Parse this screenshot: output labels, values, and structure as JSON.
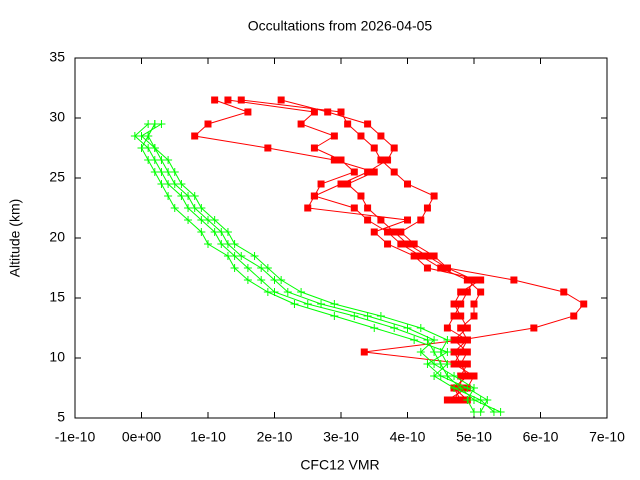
{
  "chart_data": {
    "type": "line",
    "title": "Occultations from 2026-04-05",
    "x_label": "CFC12 VMR",
    "y_label": "Altitude (km)",
    "xlim": [
      -1e-10,
      7e-10
    ],
    "xticks": [
      -1e-10,
      {
        "value": 0,
        "label": "0e+00"
      },
      1e-10,
      2e-10,
      3e-10,
      4e-10,
      5e-10,
      6e-10,
      7e-10
    ],
    "ylim": [
      5,
      35
    ],
    "yticks": [
      5,
      10,
      15,
      20,
      25,
      30,
      35
    ],
    "series": [
      {
        "color": "#ff0000",
        "marker": "square",
        "x": [
          4.7e-10,
          4.8e-10,
          4.8e-10,
          4.9e-10,
          3.35e-10,
          4.8e-10,
          5.9e-10,
          6.5e-10,
          6.65e-10,
          6.35e-10,
          5.6e-10,
          4.6e-10,
          4.3e-10,
          4e-10,
          3.8e-10,
          3.6e-10,
          3.4e-10,
          3.3e-10,
          3.1e-10,
          3.5e-10,
          2.9e-10,
          1.9e-10,
          8e-11,
          1e-10,
          1.6e-10,
          1.1e-10
        ],
        "values": [
          6.5,
          7.5,
          8.5,
          9.5,
          10.5,
          11.5,
          12.5,
          13.5,
          14.5,
          15.5,
          16.5,
          17.5,
          18.5,
          19.5,
          20.5,
          21.5,
          22.5,
          23.5,
          24.5,
          25.5,
          26.5,
          27.5,
          28.5,
          29.5,
          30.5,
          31.5
        ]
      },
      {
        "color": "#ff0000",
        "marker": "square",
        "x": [
          4.9e-10,
          4.7e-10,
          4.9e-10,
          4.8e-10,
          4.7e-10,
          4.9e-10,
          4.8e-10,
          5e-10,
          5e-10,
          5.1e-10,
          4.9e-10,
          4.5e-10,
          4.2e-10,
          3.9e-10,
          3.7e-10,
          3.4e-10,
          3.2e-10,
          2.6e-10,
          2.7e-10,
          3.2e-10,
          3e-10,
          2.6e-10,
          2.9e-10,
          2.4e-10,
          2.6e-10,
          1.3e-10
        ],
        "values": [
          6.5,
          7.5,
          8.5,
          9.5,
          10.5,
          11.5,
          12.5,
          13.5,
          14.5,
          15.5,
          16.5,
          17.5,
          18.5,
          19.5,
          20.5,
          21.5,
          22.5,
          23.5,
          24.5,
          25.5,
          26.5,
          27.5,
          28.5,
          29.5,
          30.5,
          31.5
        ]
      },
      {
        "color": "#ff0000",
        "marker": "square",
        "x": [
          4.6e-10,
          4.9e-10,
          5e-10,
          4.7e-10,
          4.8e-10,
          4.9e-10,
          4.6e-10,
          4.7e-10,
          4.8e-10,
          4.9e-10,
          5e-10,
          4.6e-10,
          4.4e-10,
          4.1e-10,
          3.9e-10,
          4.2e-10,
          4.3e-10,
          4.4e-10,
          4e-10,
          3.8e-10,
          3.6e-10,
          3.5e-10,
          3.3e-10,
          3.1e-10,
          3e-10,
          1.5e-10
        ],
        "values": [
          6.5,
          7.5,
          8.5,
          9.5,
          10.5,
          11.5,
          12.5,
          13.5,
          14.5,
          15.5,
          16.5,
          17.5,
          18.5,
          19.5,
          20.5,
          21.5,
          22.5,
          23.5,
          24.5,
          25.5,
          26.5,
          27.5,
          28.5,
          29.5,
          30.5,
          31.5
        ]
      },
      {
        "color": "#ff0000",
        "marker": "square",
        "x": [
          4.8e-10,
          4.7e-10,
          4.9e-10,
          4.8e-10,
          4.9e-10,
          4.7e-10,
          4.9e-10,
          4.8e-10,
          4.7e-10,
          4.8e-10,
          5.1e-10,
          4.3e-10,
          4.1e-10,
          3.7e-10,
          3.5e-10,
          4e-10,
          2.5e-10,
          2.6e-10,
          3e-10,
          3.4e-10,
          3.7e-10,
          3.8e-10,
          3.6e-10,
          3.4e-10,
          2.8e-10,
          2.1e-10
        ],
        "values": [
          6.5,
          7.5,
          8.5,
          9.5,
          10.5,
          11.5,
          12.5,
          13.5,
          14.5,
          15.5,
          16.5,
          17.5,
          18.5,
          19.5,
          20.5,
          21.5,
          22.5,
          23.5,
          24.5,
          25.5,
          26.5,
          27.5,
          28.5,
          29.5,
          30.5,
          31.5
        ]
      },
      {
        "color": "#00ff00",
        "marker": "plus",
        "x": [
          5.4e-10,
          5e-10,
          4.8e-10,
          4.6e-10,
          4.5e-10,
          4.4e-10,
          4.3e-10,
          3.8e-10,
          3.2e-10,
          2.5e-10,
          2e-10,
          1.8e-10,
          1.6e-10,
          1.4e-10,
          1.2e-10,
          1.1e-10,
          9e-11,
          7e-11,
          6e-11,
          4e-11,
          3e-11,
          2e-11,
          1e-11,
          -1e-11,
          1e-11
        ],
        "values": [
          5.5,
          6.5,
          7.5,
          8.5,
          9.5,
          10.5,
          11.5,
          12.5,
          13.5,
          14.5,
          15.5,
          16.5,
          17.5,
          18.5,
          19.5,
          20.5,
          21.5,
          22.5,
          23.5,
          24.5,
          25.5,
          26.5,
          27.5,
          28.5,
          29.5
        ]
      },
      {
        "color": "#00ff00",
        "marker": "plus",
        "x": [
          5.1e-10,
          5.2e-10,
          4.9e-10,
          4.5e-10,
          4.3e-10,
          4.6e-10,
          4.1e-10,
          3.5e-10,
          2.9e-10,
          2.3e-10,
          1.9e-10,
          1.6e-10,
          1.4e-10,
          1.3e-10,
          1e-10,
          9e-11,
          7e-11,
          5e-11,
          4e-11,
          3e-11,
          2e-11,
          1e-11,
          0.0,
          1e-11,
          2e-11
        ],
        "values": [
          5.5,
          6.5,
          7.5,
          8.5,
          9.5,
          10.5,
          11.5,
          12.5,
          13.5,
          14.5,
          15.5,
          16.5,
          17.5,
          18.5,
          19.5,
          20.5,
          21.5,
          22.5,
          23.5,
          24.5,
          25.5,
          26.5,
          27.5,
          28.5,
          29.5
        ]
      },
      {
        "color": "#00ff00",
        "marker": "plus",
        "x": [
          5e-10,
          4.9e-10,
          5e-10,
          4.7e-10,
          4.4e-10,
          4.2e-10,
          4.4e-10,
          4e-10,
          3.4e-10,
          2.7e-10,
          2.2e-10,
          2e-10,
          1.8e-10,
          1.5e-10,
          1.3e-10,
          1.2e-10,
          1e-10,
          8e-11,
          7e-11,
          5e-11,
          4e-11,
          3e-11,
          2e-11,
          0.0,
          3e-11
        ],
        "values": [
          5.5,
          6.5,
          7.5,
          8.5,
          9.5,
          10.5,
          11.5,
          12.5,
          13.5,
          14.5,
          15.5,
          16.5,
          17.5,
          18.5,
          19.5,
          20.5,
          21.5,
          22.5,
          23.5,
          24.5,
          25.5,
          26.5,
          27.5,
          28.5,
          29.5
        ]
      },
      {
        "color": "#00ff00",
        "marker": "plus",
        "x": [
          5.3e-10,
          5.1e-10,
          4.7e-10,
          4.4e-10,
          4.6e-10,
          4.5e-10,
          4.6e-10,
          4.2e-10,
          3.6e-10,
          2.9e-10,
          2.4e-10,
          2.1e-10,
          1.9e-10,
          1.7e-10,
          1.4e-10,
          1.3e-10,
          1.1e-10,
          9e-11,
          8e-11,
          6e-11,
          5e-11,
          4e-11,
          2e-11,
          1e-11,
          2e-11
        ],
        "values": [
          5.5,
          6.5,
          7.5,
          8.5,
          9.5,
          10.5,
          11.5,
          12.5,
          13.5,
          14.5,
          15.5,
          16.5,
          17.5,
          18.5,
          19.5,
          20.5,
          21.5,
          22.5,
          23.5,
          24.5,
          25.5,
          26.5,
          27.5,
          28.5,
          29.5
        ]
      }
    ]
  }
}
